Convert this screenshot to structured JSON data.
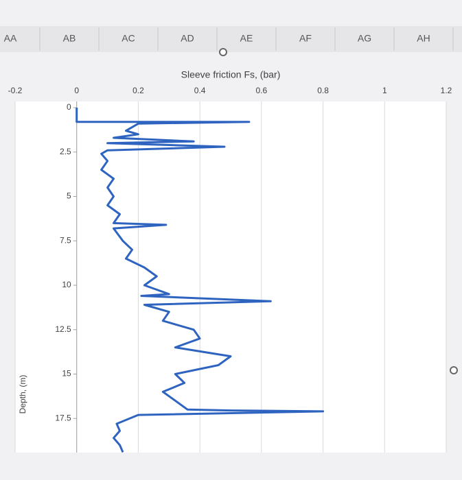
{
  "spreadsheet": {
    "columns": [
      "AA",
      "AB",
      "AC",
      "AD",
      "AE",
      "AF",
      "AG",
      "AH"
    ]
  },
  "chart_data": {
    "type": "line",
    "title": "Sleeve friction Fs, (bar)",
    "y_label": "Depth, (m)",
    "xlim": [
      -0.2,
      1.2
    ],
    "xticks": [
      -0.2,
      0,
      0.2,
      0.4,
      0.6,
      0.8,
      1,
      1.2
    ],
    "ylim": [
      0,
      19.6
    ],
    "yticks": [
      0,
      2.5,
      5,
      7.5,
      10,
      12.5,
      15,
      17.5
    ],
    "y_inverted": true,
    "grid": true,
    "series": [
      {
        "color": "#2e64c0",
        "x": [
          0,
          0,
          0.56,
          0.2,
          0.16,
          0.2,
          0.12,
          0.38,
          0.1,
          0.48,
          0.1,
          0.08,
          0.1,
          0.08,
          0.12,
          0.1,
          0.12,
          0.1,
          0.14,
          0.12,
          0.29,
          0.12,
          0.15,
          0.18,
          0.16,
          0.22,
          0.26,
          0.22,
          0.3,
          0.21,
          0.63,
          0.22,
          0.3,
          0.28,
          0.38,
          0.4,
          0.32,
          0.5,
          0.46,
          0.32,
          0.35,
          0.28,
          0.32,
          0.36,
          0.5,
          0.8,
          0.2,
          0.13,
          0.14,
          0.12,
          0.14,
          0.15
        ],
        "y": [
          0,
          0.8,
          0.8,
          0.9,
          1.3,
          1.5,
          1.7,
          1.9,
          2.0,
          2.2,
          2.4,
          2.6,
          3,
          3.5,
          4,
          4.5,
          5,
          5.5,
          6,
          6.5,
          6.6,
          6.8,
          7.5,
          8,
          8.5,
          9,
          9.5,
          10,
          10.5,
          10.6,
          10.9,
          11.1,
          11.5,
          12,
          12.5,
          13,
          13.5,
          14,
          14.5,
          15,
          15.5,
          16,
          16.5,
          17,
          17.05,
          17.1,
          17.3,
          17.8,
          18.2,
          18.6,
          19,
          19.4
        ]
      }
    ]
  }
}
